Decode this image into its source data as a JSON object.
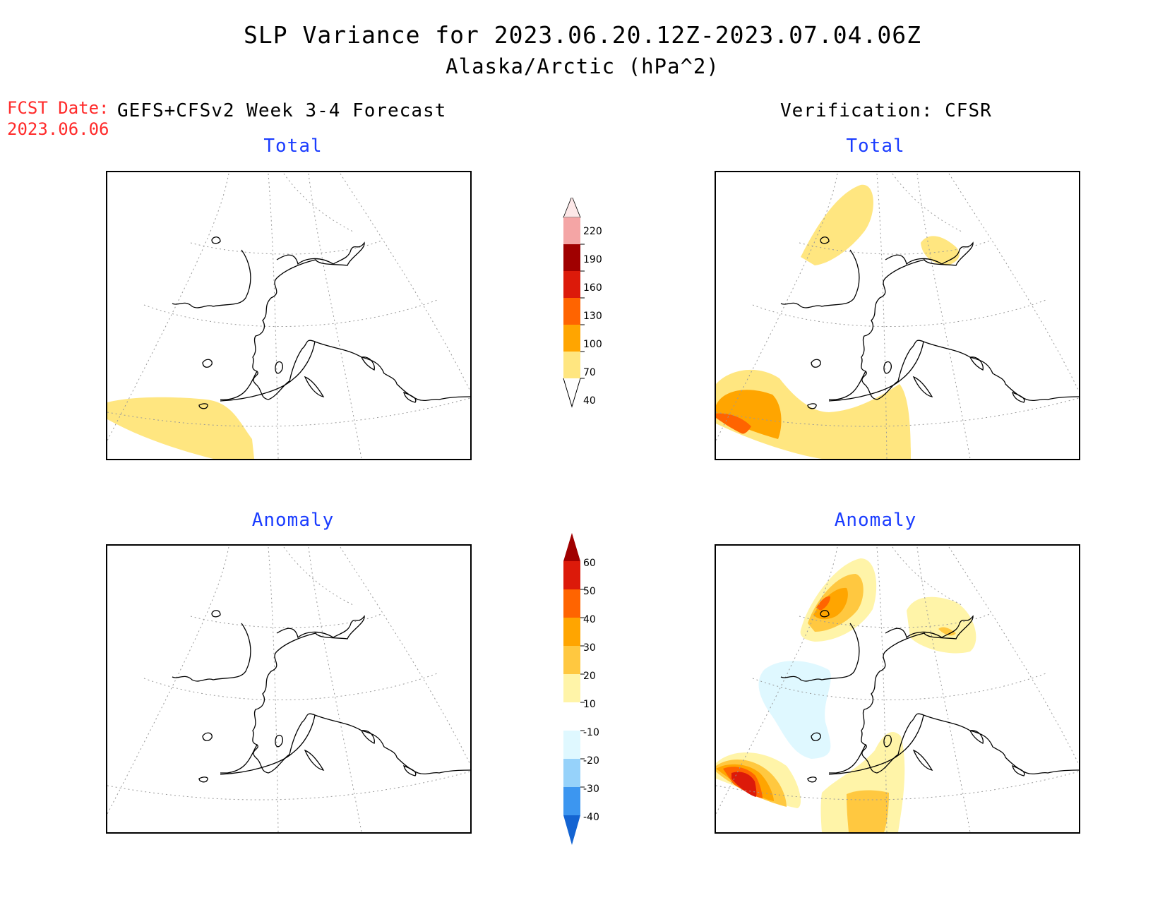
{
  "header": {
    "title": "SLP Variance for 2023.06.20.12Z-2023.07.04.06Z",
    "subtitle": "Alaska/Arctic (hPa^2)",
    "fcst_label": "FCST Date:",
    "fcst_date": "2023.06.06",
    "forecast_header": "GEFS+CFSv2 Week 3-4 Forecast",
    "verification_header": "Verification: CFSR"
  },
  "panels": {
    "fc_total_title": "Total",
    "ver_total_title": "Total",
    "fc_anom_title": "Anomaly",
    "ver_anom_title": "Anomaly"
  },
  "colorbars": {
    "total": {
      "labels": [
        "220",
        "190",
        "160",
        "130",
        "100",
        "70",
        "40"
      ],
      "colors": [
        "#fde8e8",
        "#f4a5a5",
        "#a00000",
        "#dc1a0a",
        "#ff6400",
        "#ffa500",
        "#ffe680"
      ]
    },
    "anomaly": {
      "labels": [
        "60",
        "50",
        "40",
        "30",
        "20",
        "10",
        "-10",
        "-20",
        "-30",
        "-40"
      ],
      "colors": [
        "#a00000",
        "#dc1a0a",
        "#ff6400",
        "#ffa500",
        "#ffc840",
        "#fff4a8",
        "#ffffff",
        "#dff8ff",
        "#96d2fa",
        "#3c96f0",
        "#1464d2"
      ]
    }
  },
  "colors": {
    "title_blue": "#1a3cff",
    "fcst_red": "#ff2a2a"
  }
}
